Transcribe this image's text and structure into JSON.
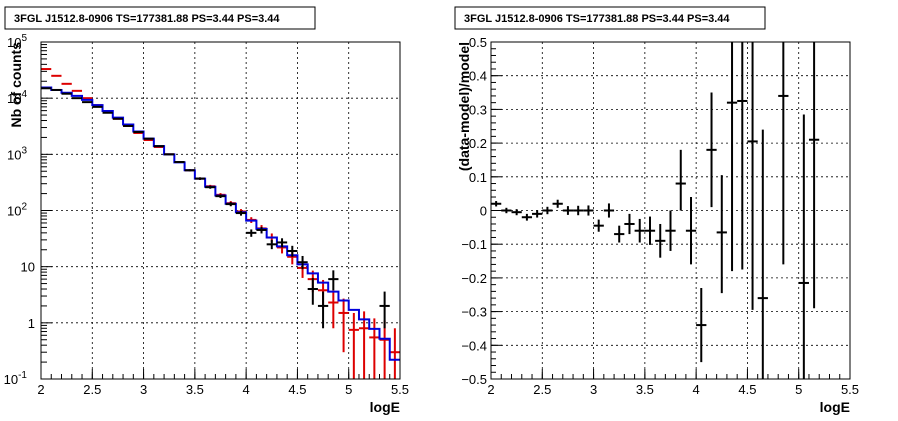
{
  "chart_data": [
    {
      "type": "line",
      "title": "3FGL J1512.8-0906 TS=177381.88 PS=3.44 PS=3.44",
      "xlabel": "logE",
      "ylabel": "Nb of counts",
      "xlim": [
        2,
        5.5
      ],
      "ylim": [
        0.1,
        100000
      ],
      "yscale": "log",
      "grid": true,
      "x_ticks": [
        "2",
        "2.5",
        "3",
        "3.5",
        "4",
        "4.5",
        "5",
        "5.5"
      ],
      "y_ticks": [
        {
          "value": 0.1,
          "label": "10",
          "exp": "-1"
        },
        {
          "value": 1,
          "label": "1",
          "exp": ""
        },
        {
          "value": 10,
          "label": "10",
          "exp": ""
        },
        {
          "value": 100,
          "label": "10",
          "exp": "2"
        },
        {
          "value": 1000,
          "label": "10",
          "exp": "3"
        },
        {
          "value": 10000,
          "label": "10",
          "exp": "4"
        },
        {
          "value": 100000,
          "label": "10",
          "exp": "5"
        }
      ],
      "bin_edges": [
        2,
        2.1,
        2.2,
        2.3,
        2.4,
        2.5,
        2.6,
        2.7,
        2.8,
        2.9,
        3,
        3.1,
        3.2,
        3.3,
        3.4,
        3.5,
        3.6,
        3.7,
        3.8,
        3.9,
        4,
        4.1,
        4.2,
        4.3,
        4.4,
        4.5,
        4.6,
        4.7,
        4.8,
        4.9,
        5,
        5.1,
        5.2,
        5.3,
        5.4,
        5.5
      ],
      "series": [
        {
          "kind": "points",
          "color": "#000000",
          "x": [
            2.05,
            2.15,
            2.25,
            2.35,
            2.45,
            2.55,
            2.65,
            2.75,
            2.85,
            2.95,
            3.05,
            3.15,
            3.25,
            3.35,
            3.45,
            3.55,
            3.65,
            3.75,
            3.85,
            3.95,
            4.05,
            4.15,
            4.25,
            4.35,
            4.45,
            4.55,
            4.65,
            4.75,
            4.85,
            5.35
          ],
          "y": [
            15000,
            14000,
            12000,
            10000,
            8500,
            7000,
            5500,
            4300,
            3200,
            2500,
            1900,
            1400,
            1000,
            730,
            520,
            370,
            260,
            180,
            130,
            90,
            40,
            45,
            25,
            27,
            19,
            12,
            4,
            2,
            6,
            2
          ],
          "yerr_low": [
            120,
            115,
            110,
            100,
            90,
            80,
            72,
            64,
            55,
            48,
            43,
            37,
            31,
            27,
            22,
            19,
            16,
            13,
            11,
            9,
            6,
            6,
            4.5,
            5,
            4,
            3,
            1.9,
            1.2,
            2.2,
            1.2
          ],
          "yerr_high": [
            120,
            115,
            110,
            100,
            90,
            80,
            72,
            64,
            55,
            48,
            43,
            37,
            31,
            27,
            22,
            19,
            16,
            13,
            11,
            9,
            6,
            6,
            5,
            5,
            4.5,
            3.5,
            2.3,
            1.6,
            2.6,
            1.6
          ]
        },
        {
          "kind": "step-errors",
          "color": "#dd0000",
          "values": [
            33000,
            25000,
            18000,
            13500,
            10000,
            7500,
            5800,
            4300,
            3200,
            2400,
            1800,
            1350,
            1000,
            730,
            520,
            370,
            270,
            190,
            135,
            96,
            68,
            48,
            33,
            22,
            15,
            9.5,
            6,
            3.8,
            2.3,
            1.5,
            0.75,
            0.8,
            0.55,
            0.5,
            0.3
          ],
          "err": [
            180,
            160,
            130,
            115,
            100,
            85,
            75,
            65,
            56,
            49,
            42,
            37,
            32,
            27,
            23,
            19,
            16,
            14,
            12,
            10,
            8,
            7,
            6,
            4.8,
            4,
            3.2,
            2.5,
            2,
            1.5,
            1.2,
            0.75,
            0.8,
            0.65,
            0.6,
            0.5
          ]
        },
        {
          "kind": "step",
          "color": "#0000dd",
          "values": [
            15500,
            14000,
            12500,
            11000,
            9300,
            7500,
            5900,
            4500,
            3400,
            2550,
            1900,
            1400,
            1000,
            720,
            520,
            370,
            265,
            185,
            132,
            93,
            66,
            47,
            33,
            23,
            16,
            11,
            7.6,
            5.2,
            3.6,
            2.5,
            1.7,
            1.15,
            0.78,
            0.52,
            0.22
          ]
        }
      ]
    },
    {
      "type": "scatter",
      "title": "3FGL J1512.8-0906 TS=177381.88 PS=3.44 PS=3.44",
      "xlabel": "logE",
      "ylabel": "(data-model)/model",
      "xlim": [
        2,
        5.5
      ],
      "ylim": [
        -0.5,
        0.5
      ],
      "grid": true,
      "x_ticks": [
        "2",
        "2.5",
        "3",
        "3.5",
        "4",
        "4.5",
        "5",
        "5.5"
      ],
      "y_ticks": [
        "−0.5",
        "−0.4",
        "−0.3",
        "−0.2",
        "−0.1",
        "0",
        "0.1",
        "0.2",
        "0.3",
        "0.4",
        "0.5"
      ],
      "series": [
        {
          "kind": "points",
          "color": "#000000",
          "x": [
            2.05,
            2.15,
            2.25,
            2.35,
            2.45,
            2.55,
            2.65,
            2.75,
            2.85,
            2.95,
            3.05,
            3.15,
            3.25,
            3.35,
            3.45,
            3.55,
            3.65,
            3.75,
            3.85,
            3.95,
            4.05,
            4.15,
            4.25,
            4.35,
            4.45,
            4.55,
            4.65,
            4.85,
            5.05,
            5.15
          ],
          "y": [
            0.02,
            0.0,
            -0.005,
            -0.02,
            -0.01,
            0.0,
            0.02,
            0.0,
            0.0,
            0.0,
            -0.045,
            0.0,
            -0.07,
            -0.04,
            -0.06,
            -0.06,
            -0.09,
            -0.06,
            0.08,
            -0.06,
            -0.34,
            0.18,
            -0.065,
            0.32,
            0.325,
            0.205,
            -0.26,
            0.34,
            -0.215,
            0.21
          ],
          "yerr_low": [
            0.008,
            0.008,
            0.009,
            0.01,
            0.011,
            0.011,
            0.012,
            0.013,
            0.014,
            0.015,
            0.018,
            0.021,
            0.025,
            0.03,
            0.035,
            0.042,
            0.05,
            0.06,
            0.08,
            0.1,
            0.11,
            0.17,
            0.18,
            0.5,
            0.5,
            0.5,
            0.5,
            0.5,
            0.5,
            0.5
          ],
          "yerr_high": [
            0.008,
            0.008,
            0.009,
            0.01,
            0.011,
            0.011,
            0.012,
            0.013,
            0.014,
            0.015,
            0.018,
            0.021,
            0.025,
            0.03,
            0.035,
            0.042,
            0.05,
            0.06,
            0.1,
            0.1,
            0.11,
            0.17,
            0.17,
            0.5,
            0.5,
            0.5,
            0.5,
            0.5,
            0.5,
            0.5
          ]
        }
      ]
    }
  ]
}
